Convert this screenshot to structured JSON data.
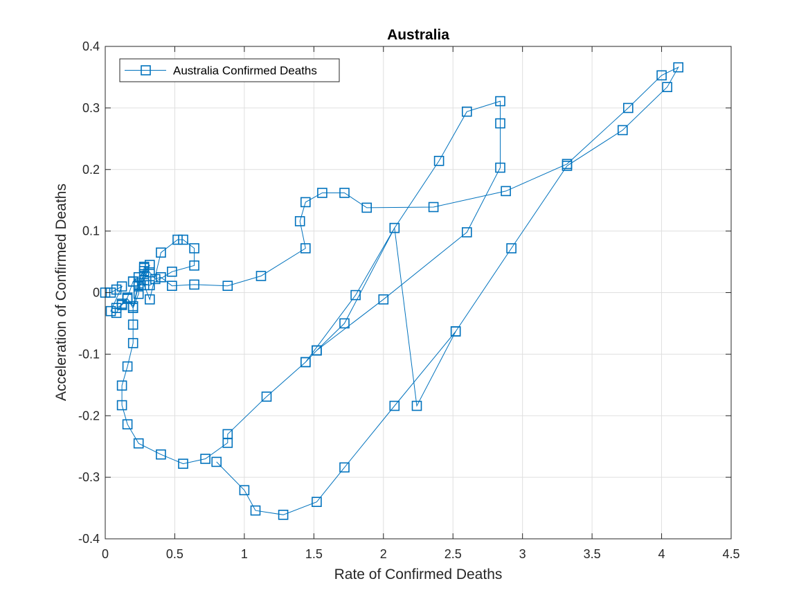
{
  "chart_data": {
    "type": "line",
    "title": "Australia",
    "xlabel": "Rate of Confirmed Deaths",
    "ylabel": "Acceleration of Confirmed Deaths",
    "xlim": [
      0,
      4.5
    ],
    "ylim": [
      -0.4,
      0.4
    ],
    "xticks": [
      0,
      0.5,
      1,
      1.5,
      2,
      2.5,
      3,
      3.5,
      4,
      4.5
    ],
    "xtick_labels": [
      "0",
      "0.5",
      "1",
      "1.5",
      "2",
      "2.5",
      "3",
      "3.5",
      "4",
      "4.5"
    ],
    "yticks": [
      -0.4,
      -0.3,
      -0.2,
      -0.1,
      0,
      0.1,
      0.2,
      0.3,
      0.4
    ],
    "ytick_labels": [
      "-0.4",
      "-0.3",
      "-0.2",
      "-0.1",
      "0",
      "0.1",
      "0.2",
      "0.3",
      "0.4"
    ],
    "grid": true,
    "legend_position": "top-left",
    "colors": {
      "series": "#0072bd",
      "grid": "#dfdfdf",
      "axis": "#262626"
    },
    "series": [
      {
        "name": "Australia Confirmed Deaths",
        "marker": "square",
        "x": [
          0,
          0.04,
          0.08,
          0.12,
          0.04,
          0.08,
          0.12,
          0.16,
          0.2,
          0.24,
          0.28,
          0.28,
          0.24,
          0.2,
          0.16,
          0.12,
          0.08,
          0.12,
          0.16,
          0.2,
          0.24,
          0.24,
          0.28,
          0.32,
          0.28,
          0.24,
          0.2,
          0.2,
          0.2,
          0.16,
          0.12,
          0.12,
          0.16,
          0.24,
          0.4,
          0.56,
          0.72,
          0.88,
          0.88,
          1.16,
          1.44,
          1.52,
          1.72,
          2.08,
          2.4,
          2.6,
          2.84,
          2.84,
          2.84,
          2.6,
          2.0,
          1.52,
          1.44,
          1.8,
          2.08,
          2.24,
          2.52,
          2.92,
          3.32,
          3.72,
          4.04,
          4.12,
          4.0,
          3.76,
          3.32,
          2.88,
          2.36,
          1.88,
          1.72,
          1.56,
          1.44,
          1.4,
          1.44,
          1.12,
          0.88,
          0.64,
          0.48,
          0.4,
          0.36,
          0.32,
          0.28,
          0.28,
          0.32,
          0.4,
          0.52,
          0.56,
          0.64,
          0.64,
          0.48,
          0.32,
          0.2
        ],
        "y": [
          0,
          0.0,
          0.005,
          0.01,
          -0.03,
          -0.033,
          -0.018,
          -0.008,
          0.018,
          0.025,
          0.035,
          0.04,
          0.015,
          -0.022,
          -0.01,
          -0.02,
          -0.025,
          -0.02,
          -0.01,
          -0.025,
          -0.002,
          0.01,
          0.02,
          0.045,
          0.03,
          0.012,
          -0.025,
          -0.052,
          -0.082,
          -0.12,
          -0.151,
          -0.183,
          -0.214,
          -0.245,
          -0.263,
          -0.278,
          -0.27,
          -0.244,
          -0.23,
          -0.169,
          -0.113,
          -0.094,
          -0.05,
          0.105,
          0.214,
          0.294,
          0.311,
          0.275,
          0.203,
          0.098,
          -0.011,
          -0.094,
          -0.113,
          -0.004,
          0.105,
          -0.184,
          -0.063,
          0.072,
          0.206,
          0.264,
          0.334,
          0.366,
          0.353,
          0.3,
          0.209,
          0.165,
          0.139,
          0.138,
          0.162,
          0.162,
          0.147,
          0.116,
          0.072,
          0.027,
          0.011,
          0.013,
          0.011,
          0.025,
          0.022,
          0.033,
          0.042,
          0.012,
          -0.011,
          0.065,
          0.086,
          0.086,
          0.072,
          0.044,
          0.034,
          0.012,
          0.018
        ]
      }
    ],
    "bottom_arc": {
      "x": [
        0.8,
        1.0,
        1.08,
        1.28,
        1.52,
        1.72,
        2.08,
        2.52
      ],
      "y": [
        -0.275,
        -0.321,
        -0.354,
        -0.361,
        -0.34,
        -0.284,
        -0.184,
        -0.063
      ]
    }
  }
}
